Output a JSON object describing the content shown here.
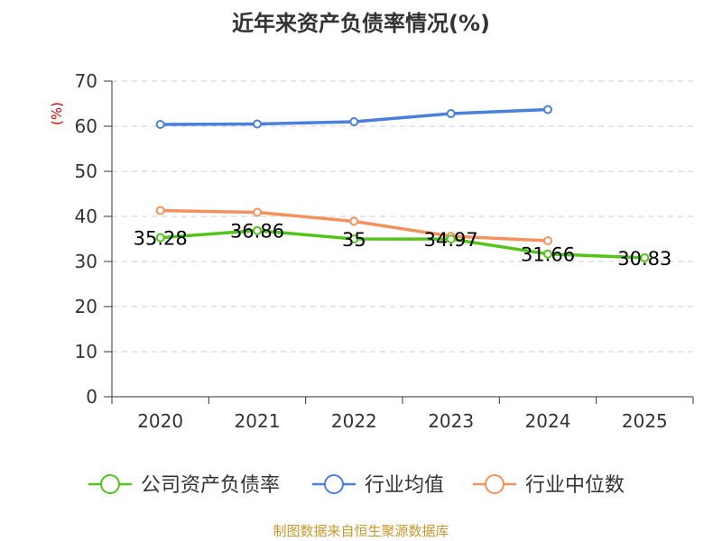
{
  "chart_data": {
    "type": "line",
    "title": "近年来资产负债率情况(%)",
    "ylabel": "(%)",
    "xlabel": "",
    "categories": [
      "2020",
      "2021",
      "2022",
      "2023",
      "2024",
      "2025"
    ],
    "ylim": [
      0,
      70
    ],
    "yticks": [
      0,
      10,
      20,
      30,
      40,
      50,
      60,
      70
    ],
    "grid": "horizontal dashed",
    "legend_position": "bottom",
    "series": [
      {
        "name": "公司资产负债率",
        "color": "#52c41a",
        "values": [
          35.28,
          36.86,
          35,
          34.97,
          31.66,
          30.83
        ],
        "data_labels": [
          "35.28",
          "36.86",
          "35",
          "34.97",
          "31.66",
          "30.83"
        ]
      },
      {
        "name": "行业均值",
        "color": "#4a7fdc",
        "values": [
          60.4,
          60.5,
          61.0,
          62.8,
          63.7,
          null
        ]
      },
      {
        "name": "行业中位数",
        "color": "#f4915d",
        "values": [
          41.3,
          40.9,
          38.9,
          35.6,
          34.6,
          null
        ]
      }
    ]
  },
  "source_text": "制图数据来自恒生聚源数据库",
  "colors": {
    "title": "#333333",
    "ylabel": "#cc0000",
    "axis": "#333333",
    "grid": "#cccccc",
    "source": "#c8962d"
  }
}
